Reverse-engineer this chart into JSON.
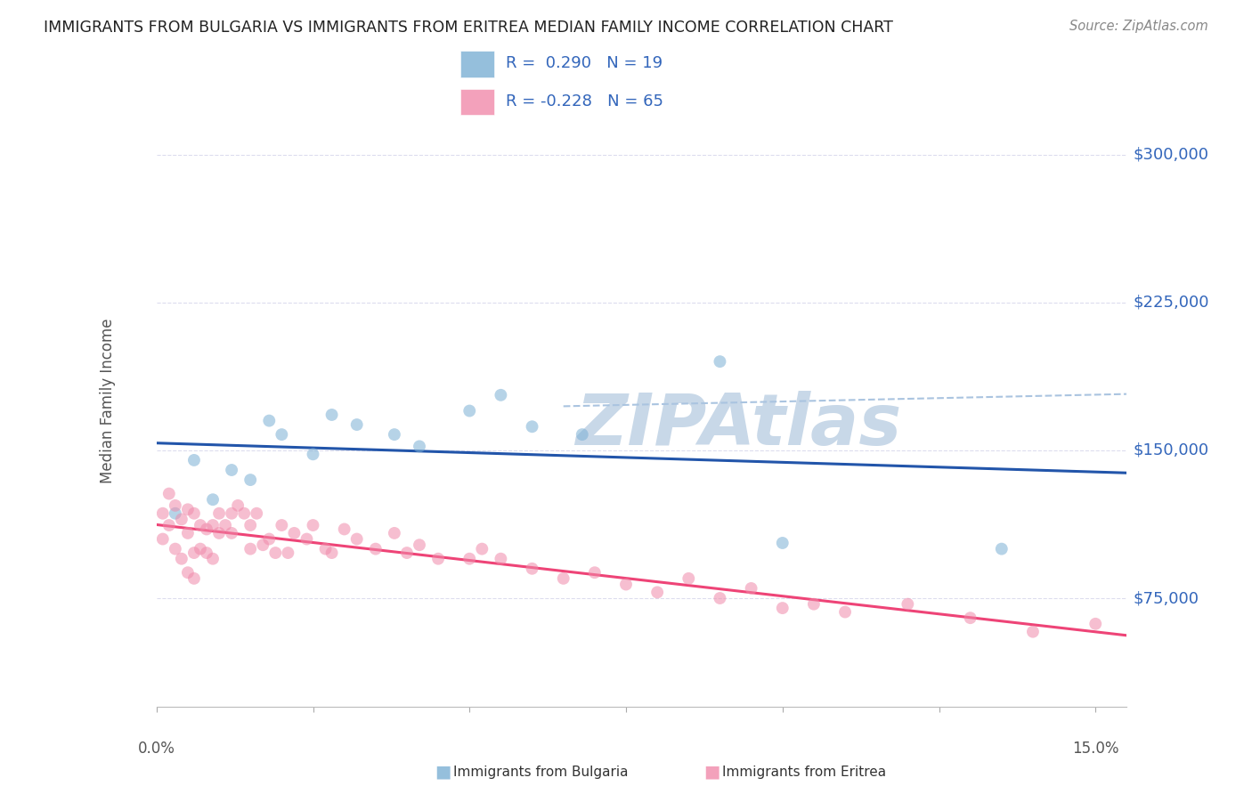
{
  "title": "IMMIGRANTS FROM BULGARIA VS IMMIGRANTS FROM ERITREA MEDIAN FAMILY INCOME CORRELATION CHART",
  "source": "Source: ZipAtlas.com",
  "ylabel": "Median Family Income",
  "watermark": "ZIPAtlas",
  "legend_line1": "R =  0.290   N = 19",
  "legend_line2": "R = -0.228   N = 65",
  "yticks": [
    75000,
    150000,
    225000,
    300000
  ],
  "ytick_labels": [
    "$75,000",
    "$150,000",
    "$225,000",
    "$300,000"
  ],
  "ylim": [
    20000,
    330000
  ],
  "xlim": [
    0.0,
    0.155
  ],
  "bulgaria_color": "#7bafd4",
  "eritrea_color": "#f08aaa",
  "bulgaria_trend_color": "#2255aa",
  "eritrea_trend_color": "#ee4477",
  "dash_color": "#aac4e0",
  "grid_color": "#ddddee",
  "bg_color": "#ffffff",
  "title_color": "#222222",
  "ylabel_color": "#555555",
  "axis_tick_color": "#3366bb",
  "source_color": "#888888",
  "watermark_color": "#c8d8e8",
  "scatter_alpha": 0.55,
  "scatter_size": 100,
  "trend_linewidth": 2.2,
  "bulgaria_x": [
    0.003,
    0.006,
    0.009,
    0.012,
    0.015,
    0.018,
    0.02,
    0.025,
    0.028,
    0.032,
    0.038,
    0.042,
    0.05,
    0.055,
    0.06,
    0.068,
    0.09,
    0.1,
    0.135
  ],
  "bulgaria_y": [
    118000,
    145000,
    125000,
    140000,
    135000,
    165000,
    158000,
    148000,
    168000,
    163000,
    158000,
    152000,
    170000,
    178000,
    162000,
    158000,
    195000,
    103000,
    100000
  ],
  "eritrea_x": [
    0.001,
    0.001,
    0.002,
    0.002,
    0.003,
    0.003,
    0.004,
    0.004,
    0.005,
    0.005,
    0.005,
    0.006,
    0.006,
    0.006,
    0.007,
    0.007,
    0.008,
    0.008,
    0.009,
    0.009,
    0.01,
    0.01,
    0.011,
    0.012,
    0.012,
    0.013,
    0.014,
    0.015,
    0.015,
    0.016,
    0.017,
    0.018,
    0.019,
    0.02,
    0.021,
    0.022,
    0.024,
    0.025,
    0.027,
    0.028,
    0.03,
    0.032,
    0.035,
    0.038,
    0.04,
    0.042,
    0.045,
    0.05,
    0.052,
    0.055,
    0.06,
    0.065,
    0.07,
    0.075,
    0.08,
    0.085,
    0.09,
    0.095,
    0.1,
    0.105,
    0.11,
    0.12,
    0.13,
    0.14,
    0.15
  ],
  "eritrea_y": [
    118000,
    105000,
    128000,
    112000,
    122000,
    100000,
    115000,
    95000,
    120000,
    108000,
    88000,
    118000,
    98000,
    85000,
    112000,
    100000,
    110000,
    98000,
    112000,
    95000,
    118000,
    108000,
    112000,
    118000,
    108000,
    122000,
    118000,
    112000,
    100000,
    118000,
    102000,
    105000,
    98000,
    112000,
    98000,
    108000,
    105000,
    112000,
    100000,
    98000,
    110000,
    105000,
    100000,
    108000,
    98000,
    102000,
    95000,
    95000,
    100000,
    95000,
    90000,
    85000,
    88000,
    82000,
    78000,
    85000,
    75000,
    80000,
    70000,
    72000,
    68000,
    72000,
    65000,
    58000,
    62000
  ]
}
